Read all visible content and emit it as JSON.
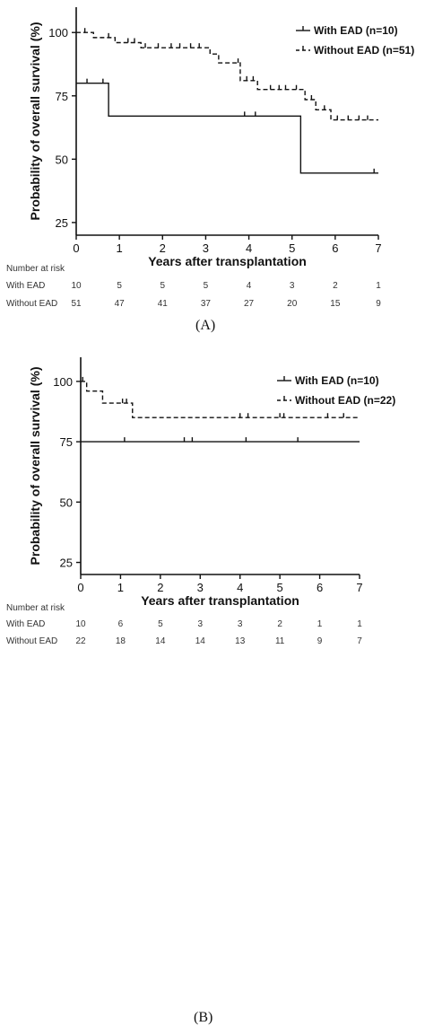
{
  "chart_data": [
    {
      "type": "line",
      "panel_label": "(A)",
      "xlabel": "Years after transplantation",
      "ylabel": "Probability of overall survival (%)",
      "xlim": [
        0,
        7
      ],
      "ylim": [
        20,
        110
      ],
      "xticks": [
        "0",
        "1",
        "2",
        "3",
        "4",
        "5",
        "6",
        "7"
      ],
      "yticks": [
        "25",
        "50",
        "75",
        "100"
      ],
      "legend_position": "top-right",
      "series": [
        {
          "name": "With EAD (n=10)",
          "style": "solid",
          "steps": [
            [
              0,
              80
            ],
            [
              0.75,
              67
            ],
            [
              5.2,
              44.5
            ],
            [
              7,
              44.5
            ]
          ],
          "censored": [
            [
              0.25,
              80
            ],
            [
              0.62,
              80
            ],
            [
              3.9,
              67
            ],
            [
              4.15,
              67
            ],
            [
              6.9,
              44.5
            ]
          ]
        },
        {
          "name": "Without EAD (n=51)",
          "style": "dashed",
          "steps": [
            [
              0,
              100
            ],
            [
              0.4,
              98
            ],
            [
              0.9,
              96
            ],
            [
              1.5,
              94
            ],
            [
              3.1,
              91.5
            ],
            [
              3.3,
              88
            ],
            [
              3.8,
              81
            ],
            [
              4.2,
              77.5
            ],
            [
              5.3,
              73.5
            ],
            [
              5.55,
              69.5
            ],
            [
              5.9,
              65.5
            ],
            [
              7,
              65.5
            ]
          ],
          "censored": [
            [
              0.2,
              100
            ],
            [
              0.75,
              98
            ],
            [
              1.2,
              96
            ],
            [
              1.35,
              96
            ],
            [
              1.6,
              94
            ],
            [
              1.9,
              94
            ],
            [
              2.2,
              94
            ],
            [
              2.4,
              94
            ],
            [
              2.65,
              94
            ],
            [
              2.85,
              94
            ],
            [
              3.75,
              88
            ],
            [
              3.95,
              81
            ],
            [
              4.1,
              81
            ],
            [
              4.5,
              77.5
            ],
            [
              4.7,
              77.5
            ],
            [
              4.85,
              77.5
            ],
            [
              5.1,
              77.5
            ],
            [
              5.45,
              73.5
            ],
            [
              5.75,
              69.5
            ],
            [
              6.05,
              65.5
            ],
            [
              6.3,
              65.5
            ],
            [
              6.55,
              65.5
            ],
            [
              6.75,
              65.5
            ]
          ]
        }
      ],
      "risk_table": {
        "title": "Number at risk",
        "rows": [
          {
            "label": "With EAD",
            "values": [
              "10",
              "5",
              "5",
              "5",
              "4",
              "3",
              "2",
              "1"
            ]
          },
          {
            "label": "Without EAD",
            "values": [
              "51",
              "47",
              "41",
              "37",
              "27",
              "20",
              "15",
              "9"
            ]
          }
        ]
      }
    },
    {
      "type": "line",
      "panel_label": "(B)",
      "xlabel": "Years after transplantation",
      "ylabel": "Probability of overall survival (%)",
      "xlim": [
        0,
        7
      ],
      "ylim": [
        20,
        110
      ],
      "xticks": [
        "0",
        "1",
        "2",
        "3",
        "4",
        "5",
        "6",
        "7"
      ],
      "yticks": [
        "25",
        "50",
        "75",
        "100"
      ],
      "legend_position": "top-right",
      "series": [
        {
          "name": "With EAD (n=10)",
          "style": "solid",
          "steps": [
            [
              0,
              75
            ],
            [
              7,
              75
            ]
          ],
          "censored": [
            [
              1.1,
              75
            ],
            [
              2.6,
              75
            ],
            [
              2.8,
              75
            ],
            [
              4.15,
              75
            ],
            [
              5.45,
              75
            ]
          ]
        },
        {
          "name": "Without EAD (n=22)",
          "style": "dashed",
          "steps": [
            [
              0,
              100
            ],
            [
              0.15,
              96
            ],
            [
              0.55,
              91
            ],
            [
              1.3,
              85
            ],
            [
              7,
              85
            ]
          ],
          "censored": [
            [
              0.05,
              100
            ],
            [
              1.05,
              91
            ],
            [
              1.15,
              91
            ],
            [
              4.0,
              85
            ],
            [
              4.2,
              85
            ],
            [
              5.0,
              85
            ],
            [
              5.1,
              85
            ],
            [
              6.2,
              85
            ],
            [
              6.6,
              85
            ]
          ]
        }
      ],
      "risk_table": {
        "title": "Number at risk",
        "rows": [
          {
            "label": "With EAD",
            "values": [
              "10",
              "6",
              "5",
              "3",
              "3",
              "2",
              "1",
              "1"
            ]
          },
          {
            "label": "Without EAD",
            "values": [
              "22",
              "18",
              "14",
              "14",
              "13",
              "11",
              "9",
              "7"
            ]
          }
        ]
      }
    }
  ]
}
